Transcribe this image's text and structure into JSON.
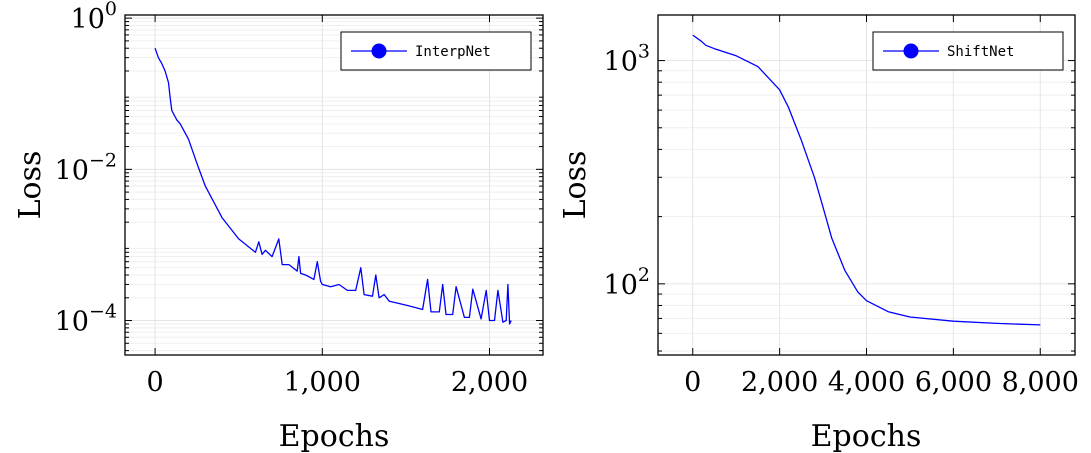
{
  "chart_data": [
    {
      "type": "line",
      "xlabel": "Epochs",
      "ylabel": "Loss",
      "yscale": "log",
      "xlim": [
        -180,
        2320
      ],
      "ylim": [
        3.5e-05,
        1.1
      ],
      "xticks": [
        0,
        1000,
        2000
      ],
      "xtick_labels": [
        "0",
        "1,000",
        "2,000"
      ],
      "yticks": [
        1,
        0.01,
        0.0001
      ],
      "ytick_labels": [
        {
          "base": "10",
          "exp": "0"
        },
        {
          "base": "10",
          "exp": "−2"
        },
        {
          "base": "10",
          "exp": "−4"
        }
      ],
      "grid": true,
      "legend_position": "top-right",
      "series": [
        {
          "name": "InterpNet",
          "color": "#0000ff",
          "x": [
            0,
            20,
            40,
            60,
            80,
            90,
            100,
            130,
            150,
            200,
            250,
            300,
            400,
            500,
            600,
            620,
            640,
            660,
            700,
            740,
            760,
            800,
            850,
            860,
            870,
            900,
            950,
            970,
            990,
            1000,
            1050,
            1100,
            1150,
            1200,
            1230,
            1250,
            1300,
            1320,
            1340,
            1370,
            1400,
            1450,
            1500,
            1550,
            1600,
            1630,
            1650,
            1700,
            1720,
            1740,
            1780,
            1800,
            1850,
            1880,
            1900,
            1950,
            1980,
            2000,
            2030,
            2050,
            2080,
            2100,
            2110,
            2120,
            2130
          ],
          "y": [
            0.4,
            0.3,
            0.25,
            0.2,
            0.14,
            0.09,
            0.06,
            0.045,
            0.04,
            0.025,
            0.012,
            0.006,
            0.0023,
            0.0012,
            0.0008,
            0.0011,
            0.00075,
            0.00085,
            0.0007,
            0.0012,
            0.00055,
            0.00055,
            0.00045,
            0.0007,
            0.00042,
            0.0004,
            0.00035,
            0.0006,
            0.00033,
            0.0003,
            0.00028,
            0.0003,
            0.00025,
            0.00025,
            0.0005,
            0.00022,
            0.00021,
            0.0004,
            0.0002,
            0.00022,
            0.00018,
            0.00017,
            0.00016,
            0.00015,
            0.00014,
            0.00035,
            0.00013,
            0.00013,
            0.0003,
            0.00012,
            0.00012,
            0.00028,
            0.00011,
            0.00011,
            0.00026,
            0.000105,
            0.00025,
            0.0001,
            0.0001,
            0.00025,
            9.5e-05,
            0.0001,
            0.0003,
            9e-05,
            0.0001
          ]
        }
      ]
    },
    {
      "type": "line",
      "xlabel": "Epochs",
      "ylabel": "Loss",
      "yscale": "log",
      "xlim": [
        -800,
        8800
      ],
      "ylim": [
        48,
        1600
      ],
      "xticks": [
        0,
        2000,
        4000,
        6000,
        8000
      ],
      "xtick_labels": [
        "0",
        "2,000",
        "4,000",
        "6,000",
        "8,000"
      ],
      "yticks": [
        1000,
        100
      ],
      "ytick_labels": [
        {
          "base": "10",
          "exp": "3"
        },
        {
          "base": "10",
          "exp": "2"
        }
      ],
      "grid": true,
      "legend_position": "top-right",
      "series": [
        {
          "name": "ShiftNet",
          "color": "#0000ff",
          "x": [
            0,
            200,
            300,
            500,
            1000,
            1500,
            2000,
            2200,
            2500,
            2800,
            3000,
            3200,
            3500,
            3800,
            4000,
            4500,
            5000,
            6000,
            7000,
            8000
          ],
          "y": [
            1300,
            1220,
            1170,
            1130,
            1050,
            940,
            740,
            620,
            440,
            300,
            220,
            160,
            115,
            92,
            84,
            75,
            71,
            68,
            66.5,
            65.5
          ]
        }
      ]
    }
  ]
}
